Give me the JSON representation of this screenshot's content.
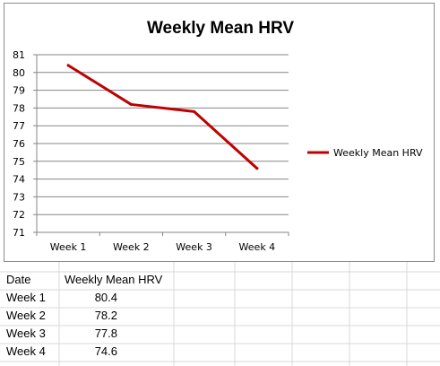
{
  "chart_data": {
    "type": "line",
    "title": "Weekly Mean HRV",
    "xlabel": "",
    "ylabel": "",
    "categories": [
      "Week 1",
      "Week 2",
      "Week 3",
      "Week 4"
    ],
    "series": [
      {
        "name": "Weekly Mean HRV",
        "values": [
          80.4,
          78.2,
          77.8,
          74.6
        ],
        "color": "#c00000"
      }
    ],
    "ylim": [
      71,
      81
    ],
    "y_ticks": [
      "71",
      "72",
      "73",
      "74",
      "75",
      "76",
      "77",
      "78",
      "79",
      "80",
      "81"
    ],
    "grid": true,
    "legend_position": "right"
  },
  "table": {
    "headers": {
      "date": "Date",
      "value": "Weekly Mean HRV"
    },
    "rows": [
      {
        "date": "Week 1",
        "value": "80.4"
      },
      {
        "date": "Week 2",
        "value": "78.2"
      },
      {
        "date": "Week 3",
        "value": "77.8"
      },
      {
        "date": "Week 4",
        "value": "74.6"
      }
    ]
  },
  "colors": {
    "series_line": "#c00000",
    "gridline": "#868686",
    "sheet_grid": "#d9d9d9",
    "chart_border": "#8c8c8c"
  }
}
